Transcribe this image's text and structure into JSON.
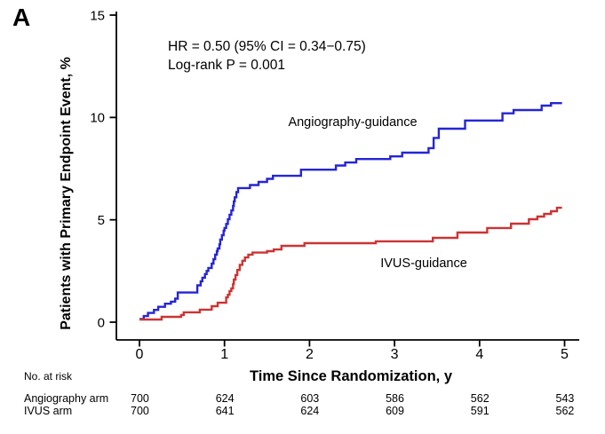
{
  "panel_label": "A",
  "annotation": {
    "line1": "HR = 0.50 (95% CI = 0.34−0.75)",
    "line2": "Log-rank P = 0.001"
  },
  "chart_data": {
    "type": "line",
    "subtype": "kaplan-meier-step",
    "title": "",
    "xlabel": "Time Since Randomization, y",
    "ylabel": "Patients with Primary Endpoint Event, %",
    "xlim": [
      0,
      5
    ],
    "ylim": [
      0,
      15
    ],
    "xticks": [
      0,
      1,
      2,
      3,
      4,
      5
    ],
    "yticks": [
      0,
      5,
      10,
      15
    ],
    "grid": false,
    "legend_position": "inline-labels",
    "x_end": 4.97,
    "series": [
      {
        "name": "Angiography-guidance",
        "color": "#2525D6",
        "final_value_pct": 10.7,
        "steps": [
          [
            0.0,
            0.15
          ],
          [
            0.05,
            0.3
          ],
          [
            0.1,
            0.45
          ],
          [
            0.17,
            0.6
          ],
          [
            0.22,
            0.75
          ],
          [
            0.3,
            0.9
          ],
          [
            0.37,
            1.0
          ],
          [
            0.42,
            1.15
          ],
          [
            0.45,
            1.45
          ],
          [
            0.68,
            1.8
          ],
          [
            0.72,
            2.0
          ],
          [
            0.74,
            2.17
          ],
          [
            0.77,
            2.35
          ],
          [
            0.79,
            2.5
          ],
          [
            0.81,
            2.65
          ],
          [
            0.85,
            2.86
          ],
          [
            0.87,
            3.08
          ],
          [
            0.89,
            3.3
          ],
          [
            0.91,
            3.47
          ],
          [
            0.92,
            3.6
          ],
          [
            0.94,
            3.8
          ],
          [
            0.95,
            4.03
          ],
          [
            0.97,
            4.25
          ],
          [
            0.99,
            4.47
          ],
          [
            1.0,
            4.6
          ],
          [
            1.02,
            4.8
          ],
          [
            1.04,
            5.03
          ],
          [
            1.06,
            5.25
          ],
          [
            1.08,
            5.46
          ],
          [
            1.1,
            5.68
          ],
          [
            1.11,
            5.9
          ],
          [
            1.12,
            6.1
          ],
          [
            1.14,
            6.35
          ],
          [
            1.16,
            6.55
          ],
          [
            1.3,
            6.7
          ],
          [
            1.4,
            6.85
          ],
          [
            1.5,
            7.0
          ],
          [
            1.57,
            7.15
          ],
          [
            1.9,
            7.45
          ],
          [
            2.31,
            7.65
          ],
          [
            2.42,
            7.8
          ],
          [
            2.55,
            7.97
          ],
          [
            2.95,
            8.1
          ],
          [
            3.09,
            8.28
          ],
          [
            3.4,
            8.5
          ],
          [
            3.46,
            9.0
          ],
          [
            3.52,
            9.45
          ],
          [
            3.83,
            9.85
          ],
          [
            4.27,
            10.2
          ],
          [
            4.4,
            10.36
          ],
          [
            4.73,
            10.58
          ],
          [
            4.84,
            10.7
          ]
        ]
      },
      {
        "name": "IVUS-guidance",
        "color": "#CC3333",
        "final_value_pct": 5.6,
        "steps": [
          [
            0.0,
            0.13
          ],
          [
            0.26,
            0.26
          ],
          [
            0.49,
            0.35
          ],
          [
            0.52,
            0.48
          ],
          [
            0.71,
            0.61
          ],
          [
            0.85,
            0.78
          ],
          [
            0.92,
            0.95
          ],
          [
            1.02,
            1.21
          ],
          [
            1.04,
            1.34
          ],
          [
            1.06,
            1.52
          ],
          [
            1.08,
            1.65
          ],
          [
            1.1,
            1.86
          ],
          [
            1.11,
            2.08
          ],
          [
            1.13,
            2.3
          ],
          [
            1.15,
            2.55
          ],
          [
            1.18,
            2.8
          ],
          [
            1.21,
            3.0
          ],
          [
            1.24,
            3.16
          ],
          [
            1.28,
            3.3
          ],
          [
            1.33,
            3.4
          ],
          [
            1.5,
            3.47
          ],
          [
            1.58,
            3.55
          ],
          [
            1.67,
            3.73
          ],
          [
            1.94,
            3.86
          ],
          [
            2.78,
            3.95
          ],
          [
            3.45,
            4.12
          ],
          [
            3.74,
            4.38
          ],
          [
            4.09,
            4.6
          ],
          [
            4.37,
            4.81
          ],
          [
            4.58,
            5.03
          ],
          [
            4.68,
            5.16
          ],
          [
            4.76,
            5.29
          ],
          [
            4.84,
            5.42
          ],
          [
            4.91,
            5.59
          ]
        ]
      }
    ]
  },
  "risk_table": {
    "title": "No. at risk",
    "rows": [
      {
        "label": "Angiography arm",
        "values": [
          700,
          624,
          603,
          586,
          562,
          543
        ]
      },
      {
        "label": "IVUS arm",
        "values": [
          700,
          641,
          624,
          609,
          591,
          562
        ]
      }
    ]
  },
  "colors": {
    "angiography_curve": "#2525D6",
    "ivus_curve": "#CC3333",
    "axis": "#000000"
  }
}
